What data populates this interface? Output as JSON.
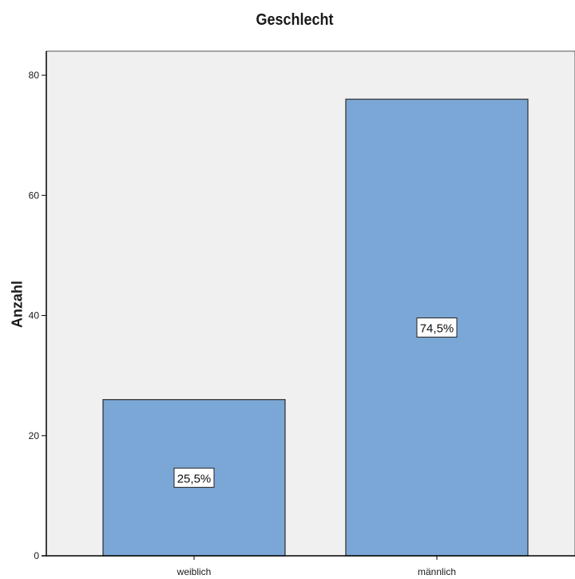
{
  "chart_data": {
    "type": "bar",
    "title": "Geschlecht",
    "xlabel": "",
    "ylabel": "Anzahl",
    "categories": [
      "weiblich",
      "männlich"
    ],
    "values": [
      26,
      76
    ],
    "data_labels": [
      "25,5%",
      "74,5%"
    ],
    "ylim": [
      0,
      84
    ],
    "yticks": [
      0,
      20,
      40,
      60,
      80
    ],
    "grid": false,
    "colors": {
      "bar_fill": "#7BA7D6",
      "bar_stroke": "#2b2b2b",
      "plot_background": "#F0F0F0",
      "axis": "#000000"
    }
  }
}
